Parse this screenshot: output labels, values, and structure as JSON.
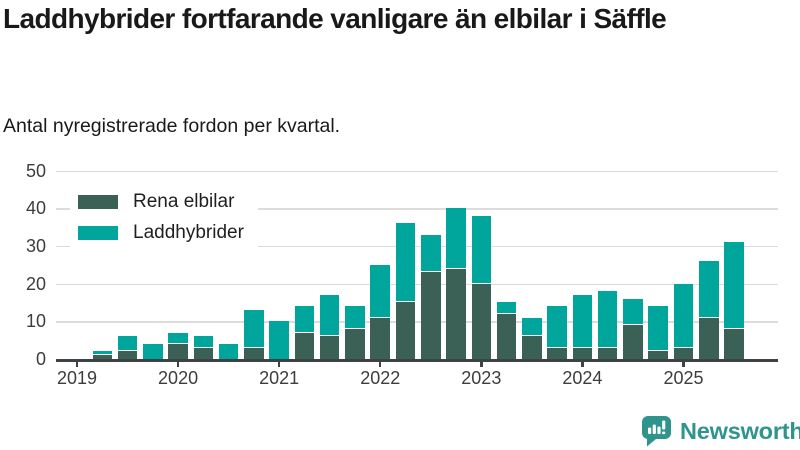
{
  "title": "Laddhybrider fortfarande vanligare än elbilar i Säffle",
  "subtitle": "Antal nyregistrerade fordon per kvartal.",
  "brand": {
    "name": "Newsworthy",
    "logo_icon": "speech-bubble-bar-chart-icon",
    "color": "#2f948c"
  },
  "colors": {
    "rena_elbilar": "#3b6055",
    "laddhybrider": "#00a69c",
    "axis_line": "#3f4245",
    "grid": "#dcdcdc",
    "text": "#1a1a1a"
  },
  "chart_data": {
    "type": "bar",
    "stacked": true,
    "title": "Laddhybrider fortfarande vanligare än elbilar i Säffle",
    "subtitle": "Antal nyregistrerade fordon per kvartal.",
    "xlabel": "",
    "ylabel": "",
    "ylim": [
      0,
      50
    ],
    "yticks": [
      0,
      10,
      20,
      30,
      40,
      50
    ],
    "grid": true,
    "legend_position": "top-left",
    "x": [
      "2019 Q1",
      "2019 Q2",
      "2019 Q3",
      "2019 Q4",
      "2020 Q1",
      "2020 Q2",
      "2020 Q3",
      "2020 Q4",
      "2021 Q1",
      "2021 Q2",
      "2021 Q3",
      "2021 Q4",
      "2022 Q1",
      "2022 Q2",
      "2022 Q3",
      "2022 Q4",
      "2023 Q1",
      "2023 Q2",
      "2023 Q3",
      "2023 Q4",
      "2024 Q1",
      "2024 Q2",
      "2024 Q3",
      "2024 Q4",
      "2025 Q1",
      "2025 Q2",
      "2025 Q3"
    ],
    "year_ticks": [
      "2019",
      "2020",
      "2021",
      "2022",
      "2023",
      "2024",
      "2025"
    ],
    "series": [
      {
        "name": "Rena elbilar",
        "color": "#3b6055",
        "values": [
          0,
          1,
          2,
          0,
          4,
          3,
          0,
          3,
          0,
          7,
          6,
          8,
          11,
          15,
          23,
          24,
          20,
          12,
          6,
          3,
          3,
          3,
          9,
          2,
          3,
          11,
          8
        ]
      },
      {
        "name": "Laddhybrider",
        "color": "#00a69c",
        "values": [
          0,
          1,
          4,
          4,
          3,
          3,
          4,
          10,
          10,
          7,
          11,
          6,
          14,
          21,
          10,
          16,
          18,
          3,
          5,
          11,
          14,
          15,
          7,
          12,
          17,
          15,
          23
        ]
      }
    ],
    "totals": [
      0,
      2,
      6,
      4,
      7,
      6,
      4,
      13,
      10,
      14,
      17,
      14,
      25,
      36,
      33,
      40,
      38,
      15,
      11,
      14,
      17,
      18,
      16,
      14,
      20,
      26,
      31
    ]
  }
}
